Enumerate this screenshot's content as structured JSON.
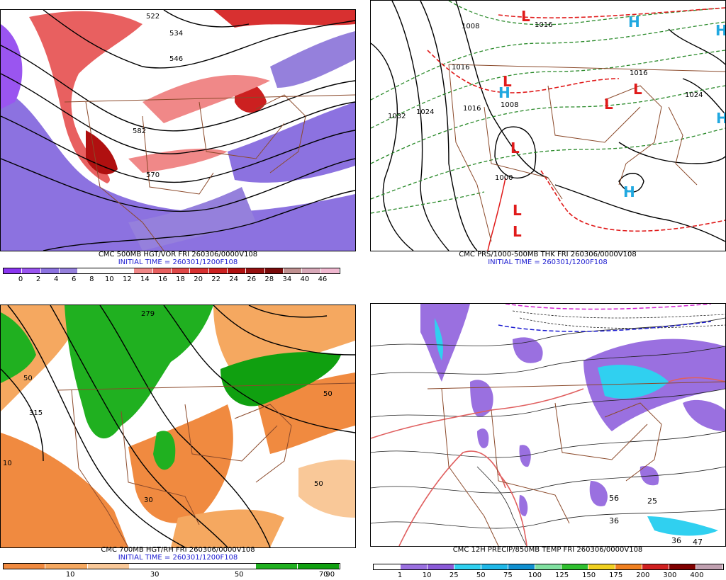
{
  "panels": {
    "vorticity": {
      "title": "CMC 500MB HGT/VOR FRI 260306/0000V108",
      "subtitle": "INITIAL TIME = 260301/1200F108",
      "colorbar": {
        "labels": [
          "0",
          "2",
          "4",
          "6",
          "8",
          "10",
          "12",
          "14",
          "16",
          "18",
          "20",
          "22",
          "24",
          "26",
          "28",
          "34",
          "40",
          "46"
        ],
        "colors": [
          "#8a35f0",
          "#9a55f0",
          "#8c72e0",
          "#9580dc",
          "#ffffff",
          "#ffffff",
          "#ffffff",
          "#f08888",
          "#e86060",
          "#e04848",
          "#d83030",
          "#cc2020",
          "#b01010",
          "#961010",
          "#7a0a0a",
          "#c09090",
          "#d8a8b8",
          "#f0b8d0"
        ]
      },
      "contour_labels": [
        "522",
        "534",
        "546",
        "570",
        "582"
      ]
    },
    "pressure": {
      "title": "CMC PRS/1000-500MB THK FRI 260306/0000V108",
      "subtitle": "INITIAL TIME = 260301/1200F108",
      "isobar_labels": [
        "1008",
        "1016",
        "1016",
        "1024",
        "1032",
        "1016",
        "1008",
        "1016",
        "1024",
        "1000"
      ],
      "lows": [
        "L",
        "L",
        "L",
        "L",
        "L",
        "L",
        "L"
      ],
      "highs": [
        "H",
        "H",
        "H",
        "H",
        "H"
      ]
    },
    "humidity": {
      "title": "CMC 700MB HGT/RH FRI 260306/0000V108",
      "subtitle": "INITIAL TIME = 260301/1200F108",
      "colorbar": {
        "labels": [
          "10",
          "30",
          "50",
          "70",
          "90"
        ],
        "colors": [
          "#f08a40",
          "#f5a860",
          "#f9c898",
          "#ffffff",
          "#ffffff",
          "#ffffff",
          "#20b020",
          "#10a010"
        ]
      },
      "contour_labels": [
        "279",
        "315",
        "50",
        "50",
        "50",
        "10",
        "30"
      ]
    },
    "precip": {
      "title": "CMC 12H PRECIP/850MB TEMP FRI 260306/0000V108",
      "colorbar": {
        "labels": [
          "1",
          "10",
          "25",
          "50",
          "75",
          "100",
          "125",
          "150",
          "175",
          "200",
          "300",
          "400"
        ],
        "colors": [
          "#ffffff",
          "#9a70e0",
          "#8a5ad8",
          "#30d0f0",
          "#20b8e8",
          "#1090d0",
          "#80e0a0",
          "#30c030",
          "#f0d020",
          "#f08020",
          "#d02020",
          "#800000",
          "#c0a0b0"
        ]
      },
      "amount_labels": [
        "36",
        "56",
        "36",
        "47",
        "25"
      ]
    }
  }
}
